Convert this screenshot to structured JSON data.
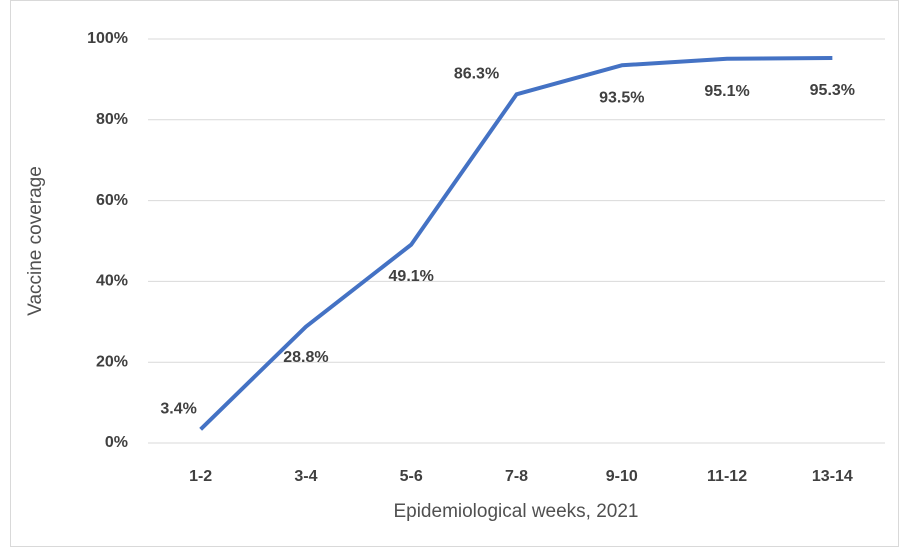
{
  "chart_data": {
    "type": "line",
    "x_label": "Epidemiological weeks, 2021",
    "y_label": "Vaccine coverage",
    "categories": [
      "1-2",
      "3-4",
      "5-6",
      "7-8",
      "9-10",
      "11-12",
      "13-14"
    ],
    "series": [
      {
        "name": "Vaccine coverage",
        "color": "#4472c4",
        "values": [
          3.4,
          28.8,
          49.1,
          86.3,
          93.5,
          95.1,
          95.3
        ],
        "value_labels": [
          "3.4%",
          "28.8%",
          "49.1%",
          "86.3%",
          "93.5%",
          "95.1%",
          "95.3%"
        ]
      }
    ],
    "ylim": [
      0,
      100
    ],
    "yticks": [
      {
        "value": 0,
        "label": "0%"
      },
      {
        "value": 20,
        "label": "20%"
      },
      {
        "value": 40,
        "label": "40%"
      },
      {
        "value": 60,
        "label": "60%"
      },
      {
        "value": 80,
        "label": "80%"
      },
      {
        "value": 100,
        "label": "100%"
      }
    ],
    "grid": true
  }
}
